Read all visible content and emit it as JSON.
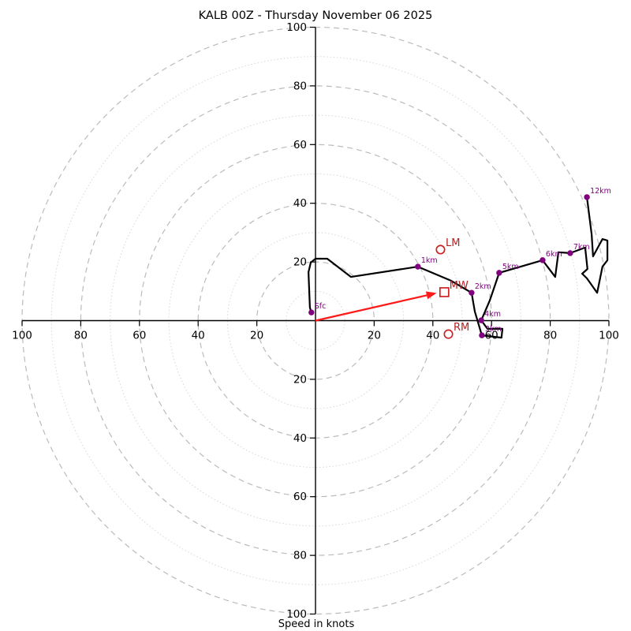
{
  "title": "KALB 00Z - Thursday November 06 2025",
  "chart_data": {
    "type": "line",
    "subtype": "hodograph-polar",
    "title": "KALB 00Z - Thursday November 06 2025",
    "xlabel": "Speed in knots",
    "units": "knots",
    "axis_range": [
      -100,
      100
    ],
    "radial_ticks": [
      20,
      40,
      60,
      80,
      100
    ],
    "ring_radii_dashed": [
      20,
      40,
      60,
      80,
      100
    ],
    "ring_radii_dotted": [
      10,
      30,
      50,
      70,
      90
    ],
    "grid": "polar rings, dashed major / dotted minor",
    "legend": "none",
    "colors": {
      "trace": "#000000",
      "height_marker": "#800080",
      "height_label": "#800080",
      "storm_marker": "#cc2222",
      "storm_label": "#b22222",
      "arrow": "#ff1a1a",
      "ring_dashed": "#bbbbbb",
      "ring_dotted": "#d9d9d9",
      "axis": "#000000"
    },
    "trace_uv": [
      [
        -1.4,
        2.8
      ],
      [
        -1.9,
        4.4
      ],
      [
        -2.4,
        16.5
      ],
      [
        -1.6,
        19.8
      ],
      [
        0.0,
        21.1
      ],
      [
        4.0,
        21.1
      ],
      [
        12.1,
        14.9
      ],
      [
        34.9,
        18.4
      ],
      [
        46.2,
        13.6
      ],
      [
        53.2,
        9.5
      ],
      [
        54.3,
        3.1
      ],
      [
        56.7,
        -5.0
      ],
      [
        63.4,
        -5.8
      ],
      [
        63.7,
        -2.8
      ],
      [
        58.6,
        -2.8
      ],
      [
        56.5,
        0.1
      ],
      [
        59.4,
        6.9
      ],
      [
        62.6,
        16.3
      ],
      [
        69.9,
        18.4
      ],
      [
        77.4,
        20.6
      ],
      [
        81.7,
        14.9
      ],
      [
        82.8,
        23.3
      ],
      [
        86.8,
        23.0
      ],
      [
        91.9,
        24.9
      ],
      [
        92.7,
        17.6
      ],
      [
        90.9,
        16.0
      ],
      [
        92.5,
        14.4
      ],
      [
        96.0,
        9.5
      ],
      [
        97.8,
        18.4
      ],
      [
        99.5,
        20.6
      ],
      [
        99.5,
        27.3
      ],
      [
        97.8,
        27.8
      ],
      [
        94.6,
        21.9
      ],
      [
        94.1,
        29.4
      ],
      [
        92.5,
        42.1
      ]
    ],
    "height_markers": [
      {
        "label": "Sfc",
        "u": -1.4,
        "v": 2.8
      },
      {
        "label": "1km",
        "u": 34.9,
        "v": 18.4
      },
      {
        "label": "2km",
        "u": 53.2,
        "v": 9.5
      },
      {
        "label": "3km",
        "u": 56.7,
        "v": -5.0
      },
      {
        "label": "4km",
        "u": 56.5,
        "v": 0.1
      },
      {
        "label": "5km",
        "u": 62.6,
        "v": 16.3
      },
      {
        "label": "6km",
        "u": 77.4,
        "v": 20.6
      },
      {
        "label": "7km",
        "u": 86.8,
        "v": 23.0
      },
      {
        "label": "12km",
        "u": 92.5,
        "v": 42.1
      }
    ],
    "storm_motion_markers": [
      {
        "label": "LM",
        "shape": "circle",
        "u": 42.6,
        "v": 24.2
      },
      {
        "label": "MW",
        "shape": "square",
        "u": 43.9,
        "v": 9.7
      },
      {
        "label": "RM",
        "shape": "circle",
        "u": 45.3,
        "v": -4.6
      }
    ],
    "mean_wind_arrow": {
      "from_uv": [
        0,
        0
      ],
      "to_uv": [
        41.3,
        9.4
      ]
    }
  }
}
